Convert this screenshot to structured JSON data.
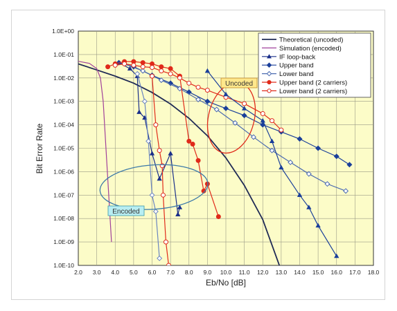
{
  "chart_data": {
    "type": "line",
    "xlabel": "Eb/No [dB]",
    "ylabel": "Bit Error Rate",
    "y_scale": "log",
    "xlim": [
      2.0,
      18.0
    ],
    "ylim_exp": [
      -10,
      0
    ],
    "x_ticks": [
      "2.0",
      "3.0",
      "4.0",
      "5.0",
      "6.0",
      "7.0",
      "8.0",
      "9.0",
      "10.0",
      "11.0",
      "12.0",
      "13.0",
      "14.0",
      "15.0",
      "16.0",
      "17.0",
      "18.0"
    ],
    "y_ticks": [
      "1.0E-10",
      "1.0E-09",
      "1.0E-08",
      "1.0E-07",
      "1.0E-06",
      "1.0E-05",
      "1.0E-04",
      "1.0E-03",
      "1.0E-02",
      "1.0E-01",
      "1.0E+00"
    ],
    "grid": true,
    "background_color": "#fcfcc8",
    "legend_position": "top-right",
    "series": [
      {
        "name": "Theoretical (uncoded)",
        "color": "#1f2a55",
        "marker": "none",
        "points": [
          [
            1.8,
            0.045
          ],
          [
            3,
            0.022
          ],
          [
            4,
            0.012
          ],
          [
            5,
            0.006
          ],
          [
            6,
            0.0024
          ],
          [
            7,
            0.00077
          ],
          [
            8,
            0.00019
          ],
          [
            9,
            3.4e-05
          ],
          [
            10,
            3.9e-06
          ],
          [
            11,
            2.6e-07
          ],
          [
            12,
            9e-09
          ],
          [
            12.9,
            1e-10
          ]
        ]
      },
      {
        "name": "Simulation (encoded)",
        "color": "#a0409a",
        "marker": "none",
        "points": [
          [
            1.8,
            0.055
          ],
          [
            2.6,
            0.042
          ],
          [
            3.0,
            0.025
          ],
          [
            3.2,
            0.01
          ],
          [
            3.35,
            0.001
          ],
          [
            3.5,
            1e-05
          ],
          [
            3.65,
            1e-07
          ],
          [
            3.8,
            1e-09
          ]
        ]
      },
      {
        "name": "IF loop-back",
        "color": "#1a2f8a",
        "marker": "triangle",
        "fill": true,
        "points": [
          [
            4.2,
            0.045
          ],
          [
            4.8,
            0.025
          ],
          [
            5.2,
            0.012
          ],
          [
            5.3,
            0.00035
          ],
          [
            5.6,
            0.0002
          ],
          [
            6.0,
            6e-06
          ],
          [
            6.4,
            5e-07
          ],
          [
            7.0,
            6e-06
          ],
          [
            7.4,
            1.5e-08
          ],
          [
            7.5,
            3e-08
          ]
        ]
      },
      {
        "name": "Upper band",
        "color": "#1a3f9a",
        "marker": "diamond",
        "fill": true,
        "points": [
          [
            4.2,
            0.045
          ],
          [
            5,
            0.03
          ],
          [
            6,
            0.013
          ],
          [
            7,
            0.006
          ],
          [
            8,
            0.0025
          ],
          [
            9,
            0.001
          ],
          [
            10,
            0.0005
          ],
          [
            11,
            0.00025
          ],
          [
            12,
            0.0001
          ],
          [
            13,
            5e-05
          ],
          [
            14,
            2.5e-05
          ],
          [
            15,
            1e-05
          ],
          [
            16,
            4.5e-06
          ],
          [
            16.7,
            2e-06
          ]
        ]
      },
      {
        "name": "Lower band",
        "color": "#4a6ab0",
        "marker": "diamond",
        "fill": false,
        "points": [
          [
            4.5,
            0.04
          ],
          [
            5.5,
            0.02
          ],
          [
            6.5,
            0.008
          ],
          [
            7.5,
            0.0035
          ],
          [
            8.5,
            0.0012
          ],
          [
            9.5,
            0.00045
          ],
          [
            10.5,
            0.00012
          ],
          [
            11.5,
            3e-05
          ],
          [
            12.5,
            8e-06
          ],
          [
            13.5,
            2.5e-06
          ],
          [
            14.5,
            8e-07
          ],
          [
            15.5,
            3e-07
          ],
          [
            16.5,
            1.5e-07
          ]
        ]
      },
      {
        "name": "Upper band (2 carriers)",
        "color": "#e02a1a",
        "marker": "circle",
        "fill": true,
        "points": [
          [
            3.6,
            0.03
          ],
          [
            4,
            0.04
          ],
          [
            4.5,
            0.05
          ],
          [
            5,
            0.05
          ],
          [
            5.5,
            0.045
          ],
          [
            6,
            0.04
          ],
          [
            6.5,
            0.03
          ],
          [
            7,
            0.025
          ],
          [
            7.5,
            0.012
          ],
          [
            8,
            2e-05
          ],
          [
            8.2,
            1.5e-05
          ],
          [
            8.5,
            3e-06
          ],
          [
            8.8,
            1.5e-07
          ],
          [
            9.0,
            3e-07
          ],
          [
            9.6,
            1.2e-08
          ]
        ]
      },
      {
        "name": "Lower band (2 carriers)",
        "color": "#e02a1a",
        "marker": "circle",
        "fill": false,
        "points": [
          [
            4,
            0.035
          ],
          [
            4.5,
            0.04
          ],
          [
            5,
            0.035
          ],
          [
            5.5,
            0.03
          ],
          [
            6,
            0.028
          ],
          [
            6.5,
            0.02
          ],
          [
            7,
            0.015
          ],
          [
            7.5,
            0.01
          ],
          [
            8,
            0.006
          ],
          [
            8.5,
            0.004
          ],
          [
            9,
            0.003
          ],
          [
            10,
            0.0015
          ],
          [
            11,
            0.0008
          ],
          [
            12,
            0.0003
          ],
          [
            12.5,
            0.00015
          ],
          [
            13,
            6e-05
          ]
        ]
      },
      {
        "name": "",
        "color": "#e02a1a",
        "marker": "circle",
        "fill": false,
        "points": [
          [
            6.0,
            0.012
          ],
          [
            6.2,
            0.0001
          ],
          [
            6.4,
            8e-06
          ],
          [
            6.55,
            1.8e-06
          ],
          [
            6.6,
            1e-07
          ],
          [
            6.75,
            1e-09
          ],
          [
            6.9,
            1e-10
          ]
        ]
      },
      {
        "name": "",
        "color": "#6a85c0",
        "marker": "diamond",
        "fill": false,
        "points": [
          [
            5.2,
            0.015
          ],
          [
            5.6,
            0.001
          ],
          [
            5.8,
            2e-05
          ],
          [
            6.0,
            1e-07
          ],
          [
            6.2,
            2e-08
          ],
          [
            6.4,
            2e-10
          ]
        ]
      },
      {
        "name": "",
        "color": "#1a3f9a",
        "marker": "triangle",
        "fill": true,
        "points": [
          [
            9,
            0.02
          ],
          [
            10,
            0.002
          ],
          [
            11,
            0.0005
          ],
          [
            12,
            0.00015
          ],
          [
            12.5,
            2e-05
          ],
          [
            13,
            1.5e-06
          ],
          [
            14,
            1e-07
          ],
          [
            14.5,
            3e-08
          ],
          [
            15,
            5e-09
          ],
          [
            16,
            2.5e-10
          ]
        ]
      }
    ],
    "annotations": [
      {
        "text": "Uncoded",
        "box_color": "#ffe88c",
        "border_color": "#c28a2a"
      },
      {
        "text": "Encoded",
        "box_color": "#b8eef2",
        "border_color": "#3a9aa8"
      }
    ],
    "ellipse_colors": {
      "uncoded": "#e02a1a",
      "encoded": "#3a78a8"
    }
  }
}
